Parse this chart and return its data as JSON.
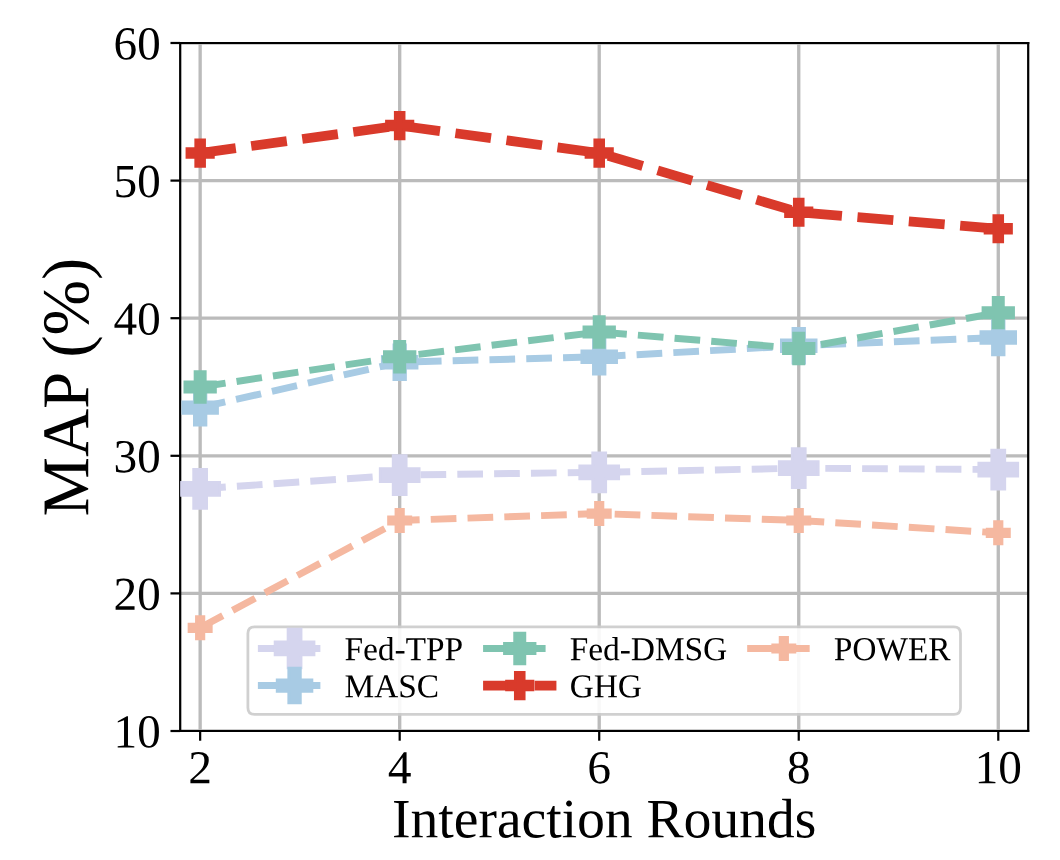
{
  "chart_data": {
    "type": "line",
    "xlabel": "Interaction Rounds",
    "ylabel": "MAP (%)",
    "x": [
      2,
      4,
      6,
      8,
      10
    ],
    "xlim": [
      1.8,
      10.3
    ],
    "xticks": [
      2,
      4,
      6,
      8,
      10
    ],
    "ylim": [
      10,
      60
    ],
    "yticks": [
      10,
      20,
      30,
      40,
      50,
      60
    ],
    "grid": true,
    "legend": "bottom",
    "marker": "cross",
    "line_style": "dashed",
    "series": [
      {
        "name": "Fed-TPP",
        "color": "#d5d5ee",
        "values": [
          27.6,
          28.6,
          28.8,
          29.1,
          29.0
        ]
      },
      {
        "name": "MASC",
        "color": "#a8cbe4",
        "values": [
          33.5,
          36.8,
          37.2,
          38.0,
          38.6
        ]
      },
      {
        "name": "Fed-DMSG",
        "color": "#7fc4b0",
        "values": [
          35.0,
          37.2,
          39.0,
          37.8,
          40.4
        ]
      },
      {
        "name": "GHG",
        "color": "#d93a2b",
        "values": [
          52.0,
          54.0,
          52.0,
          47.7,
          46.5
        ]
      },
      {
        "name": "POWER",
        "color": "#f5b8a0",
        "values": [
          17.5,
          25.3,
          25.8,
          25.3,
          24.4
        ]
      }
    ]
  }
}
